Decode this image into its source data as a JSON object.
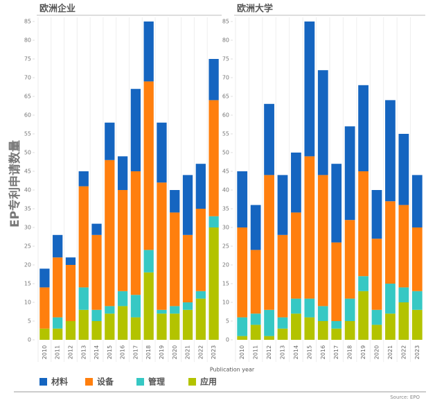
{
  "chart_data": [
    {
      "type": "stacked_bar",
      "title": "欧洲企业",
      "categories": [
        "2010",
        "2011",
        "2012",
        "2013",
        "2014",
        "2015",
        "2016",
        "2017",
        "2018",
        "2019",
        "2020",
        "2021",
        "2022",
        "2023"
      ],
      "series": [
        {
          "name": "应用",
          "color": "#b3c300",
          "values": [
            3,
            3,
            5,
            8,
            5,
            7,
            9,
            6,
            18,
            7,
            7,
            8,
            11,
            30
          ]
        },
        {
          "name": "管理",
          "color": "#36c8c4",
          "values": [
            0,
            3,
            0,
            6,
            3,
            2,
            4,
            6,
            6,
            1,
            2,
            2,
            2,
            3
          ]
        },
        {
          "name": "设备",
          "color": "#ff7f0e",
          "values": [
            11,
            16,
            15,
            27,
            20,
            39,
            27,
            33,
            45,
            34,
            25,
            18,
            22,
            31
          ]
        },
        {
          "name": "材料",
          "color": "#1565c0",
          "values": [
            5,
            6,
            2,
            4,
            3,
            10,
            9,
            22,
            16,
            16,
            6,
            16,
            12,
            11
          ]
        }
      ],
      "ylim": [
        0,
        85
      ],
      "yticks": [
        0,
        5,
        10,
        15,
        20,
        25,
        30,
        35,
        40,
        45,
        50,
        55,
        60,
        65,
        70,
        75,
        80,
        85
      ]
    },
    {
      "type": "stacked_bar",
      "title": "欧洲大学",
      "categories": [
        "2010",
        "2011",
        "2012",
        "2013",
        "2014",
        "2015",
        "2016",
        "2017",
        "2018",
        "2019",
        "2020",
        "2021",
        "2022",
        "2023"
      ],
      "series": [
        {
          "name": "应用",
          "color": "#b3c300",
          "values": [
            1,
            4,
            1,
            3,
            7,
            6,
            5,
            3,
            5,
            13,
            4,
            7,
            10,
            8
          ]
        },
        {
          "name": "管理",
          "color": "#36c8c4",
          "values": [
            5,
            3,
            7,
            3,
            4,
            5,
            4,
            2,
            6,
            4,
            4,
            8,
            4,
            5
          ]
        },
        {
          "name": "设备",
          "color": "#ff7f0e",
          "values": [
            24,
            17,
            36,
            22,
            23,
            38,
            35,
            21,
            21,
            28,
            19,
            22,
            22,
            17
          ]
        },
        {
          "name": "材料",
          "color": "#1565c0",
          "values": [
            15,
            12,
            19,
            16,
            16,
            36,
            28,
            21,
            25,
            23,
            13,
            27,
            19,
            14
          ]
        }
      ],
      "ylim": [
        0,
        85
      ],
      "yticks": [
        0,
        5,
        10,
        15,
        20,
        25,
        30,
        35,
        40,
        45,
        50,
        55,
        60,
        65,
        70,
        75,
        80,
        85
      ]
    }
  ],
  "ylabel": "EP专利申请数量",
  "xlabel": "Publication year",
  "source": "Source: EPO"
}
